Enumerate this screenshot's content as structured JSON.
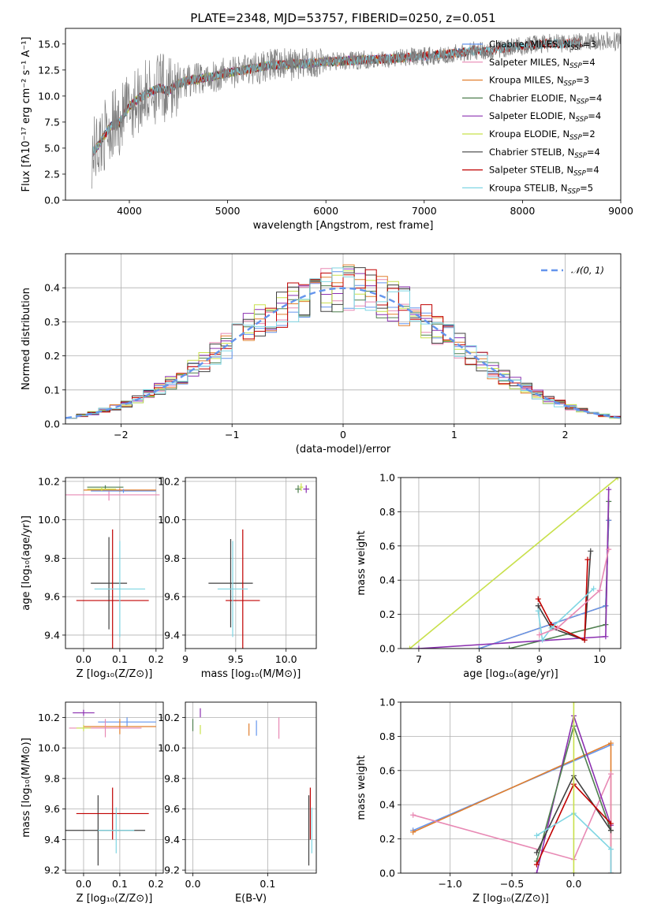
{
  "figure": {
    "title": "PLATE=2348, MJD=53757, FIBERID=0250, z=0.051"
  },
  "chart_data": [
    {
      "id": "spectrum",
      "type": "line",
      "xlabel": "wavelength [Angstrom, rest frame]",
      "ylabel": "Flux [fλ10⁻¹⁷ erg cm⁻² s⁻¹ A⁻¹]",
      "xlim": [
        3350,
        9000
      ],
      "ylim": [
        0,
        16.5
      ],
      "xticks": [
        "4000",
        "5000",
        "6000",
        "7000",
        "8000",
        "9000"
      ],
      "yticks": [
        "0.0",
        "2.5",
        "5.0",
        "7.5",
        "10.0",
        "12.5",
        "15.0"
      ],
      "grid": false,
      "legend_position": "top-right",
      "data_series": {
        "name": "",
        "color": "#808080",
        "x": [
          3620,
          3700,
          3800,
          3900,
          4000,
          4100,
          4200,
          4300,
          4400,
          4500,
          4600,
          4700,
          4800,
          4900,
          5000,
          5100,
          5200,
          5300,
          5400,
          5500,
          5600,
          5700,
          5800,
          5900,
          6000,
          6100,
          6200,
          6300,
          6400,
          6500,
          6600,
          6700,
          6800,
          6900,
          7000,
          7100,
          7200,
          7300,
          7400,
          7500,
          7600,
          7700,
          7800,
          7900,
          8000,
          8100,
          8200,
          8300,
          8400,
          8500,
          8600,
          8700,
          8800,
          8900,
          9000
        ],
        "y": [
          4.5,
          5.5,
          7.0,
          7.5,
          9.0,
          9.8,
          10.3,
          10.8,
          10.5,
          11.2,
          11.5,
          11.6,
          11.8,
          12.0,
          12.2,
          12.4,
          12.6,
          12.7,
          12.9,
          13.0,
          13.0,
          13.1,
          13.1,
          13.2,
          13.3,
          13.3,
          13.4,
          13.4,
          13.5,
          13.5,
          13.6,
          13.6,
          13.7,
          13.8,
          13.8,
          13.9,
          14.0,
          14.1,
          14.2,
          14.4,
          14.3,
          14.4,
          14.6,
          14.7,
          14.8,
          14.9,
          15.0,
          15.1,
          15.0,
          15.1,
          15.2,
          15.2,
          15.3,
          15.2,
          15.3
        ]
      },
      "models": [
        {
          "name": "Chabrier MILES, N_SSP=3",
          "color": "#6495ed",
          "end": 7420
        },
        {
          "name": "Salpeter MILES, N_SSP=4",
          "color": "#e889b4",
          "end": 7420
        },
        {
          "name": "Kroupa MILES, N_SSP=3",
          "color": "#e17f2e",
          "end": 7420
        },
        {
          "name": "Chabrier ELODIE, N_SSP=4",
          "color": "#4f7f4f",
          "end": 6800
        },
        {
          "name": "Salpeter ELODIE, N_SSP=4",
          "color": "#8b30b0",
          "end": 6800
        },
        {
          "name": "Kroupa ELODIE, N_SSP=2",
          "color": "#c8e04b",
          "end": 6800
        },
        {
          "name": "Chabrier STELIB, N_SSP=4",
          "color": "#404040",
          "end": 8600
        },
        {
          "name": "Salpeter STELIB, N_SSP=4",
          "color": "#c00000",
          "end": 8600
        },
        {
          "name": "Kroupa STELIB, N_SSP=5",
          "color": "#7fd6e3",
          "end": 8600
        }
      ]
    },
    {
      "id": "residuals",
      "type": "line",
      "xlabel": "(data-model)/error",
      "ylabel": "Normed distribution",
      "xlim": [
        -2.5,
        2.5
      ],
      "ylim": [
        0,
        0.5
      ],
      "xticks": [
        "−2",
        "−1",
        "0",
        "1",
        "2"
      ],
      "yticks": [
        "0.0",
        "0.1",
        "0.2",
        "0.3",
        "0.4"
      ],
      "grid": true,
      "legend_position": "top-right",
      "legend_label": "𝒩(0, 1)",
      "gaussian": {
        "mean": 0,
        "sigma": 1,
        "color": "#6495ed"
      }
    },
    {
      "id": "age-vs-Z",
      "type": "scatter",
      "xlabel": "Z [log₁₀(Z/Z⊙)]",
      "ylabel": "age  [log₁₀(age/yr)]",
      "xlim": [
        -0.05,
        0.22
      ],
      "ylim": [
        9.33,
        10.22
      ],
      "xticks": [
        "0.0",
        "0.1",
        "0.2"
      ],
      "yticks": [
        "9.4",
        "9.6",
        "9.8",
        "10.0",
        "10.2"
      ],
      "grid": true,
      "points": [
        {
          "color": "#e889b4",
          "x": 0.07,
          "y": 10.13,
          "xerr": 0.14,
          "yerr": 0.03
        },
        {
          "color": "#e17f2e",
          "x": 0.1,
          "y": 10.155,
          "xerr": 0.1,
          "yerr": 0.01
        },
        {
          "color": "#6495ed",
          "x": 0.11,
          "y": 10.15,
          "xerr": 0.09,
          "yerr": 0.01
        },
        {
          "color": "#4f7f4f",
          "x": 0.06,
          "y": 10.17,
          "xerr": 0.05,
          "yerr": 0.01
        },
        {
          "color": "#c8e04b",
          "x": 0.05,
          "y": 10.16,
          "xerr": 0.04,
          "yerr": 0.01
        },
        {
          "color": "#404040",
          "x": 0.07,
          "y": 9.67,
          "xerr": 0.05,
          "yerr": 0.24
        },
        {
          "color": "#c00000",
          "x": 0.08,
          "y": 9.58,
          "xerr": 0.1,
          "yerr": 0.37
        },
        {
          "color": "#7fd6e3",
          "x": 0.1,
          "y": 9.64,
          "xerr": 0.07,
          "yerr": 0.25
        }
      ]
    },
    {
      "id": "age-vs-mass",
      "type": "scatter",
      "xlabel": "mass [log₁₀(M/M⊙)]",
      "ylabel": "",
      "xlim": [
        9.0,
        10.3
      ],
      "ylim": [
        9.33,
        10.22
      ],
      "xticks": [
        "9",
        "9.5",
        "10.0"
      ],
      "yticks": [
        "9.4",
        "9.6",
        "9.8",
        "10.0",
        "10.2"
      ],
      "grid": true,
      "points": [
        {
          "color": "#4f7f4f",
          "x": 10.12,
          "y": 10.16,
          "xerr": 0.03,
          "yerr": 0.02
        },
        {
          "color": "#c8e04b",
          "x": 10.15,
          "y": 10.17,
          "xerr": 0.02,
          "yerr": 0.02
        },
        {
          "color": "#8b30b0",
          "x": 10.2,
          "y": 10.16,
          "xerr": 0.03,
          "yerr": 0.02
        },
        {
          "color": "#404040",
          "x": 9.45,
          "y": 9.67,
          "xerr": 0.22,
          "yerr": 0.23
        },
        {
          "color": "#c00000",
          "x": 9.57,
          "y": 9.58,
          "xerr": 0.17,
          "yerr": 0.37
        },
        {
          "color": "#7fd6e3",
          "x": 9.47,
          "y": 9.64,
          "xerr": 0.15,
          "yerr": 0.25
        }
      ]
    },
    {
      "id": "mass-weight-vs-age",
      "type": "line",
      "xlabel": "age  [log₁₀(age/yr)]",
      "ylabel": "mass weight",
      "xlim": [
        6.7,
        10.35
      ],
      "ylim": [
        0,
        1.0
      ],
      "xticks": [
        "7",
        "8",
        "9",
        "10"
      ],
      "yticks": [
        "0.0",
        "0.2",
        "0.4",
        "0.6",
        "0.8",
        "1.0"
      ],
      "grid": true,
      "series": [
        {
          "color": "#c8e04b",
          "x": [
            6.85,
            10.3
          ],
          "y": [
            0.0,
            1.0
          ]
        },
        {
          "color": "#e17f2e",
          "x": [
            8.0,
            10.1,
            10.15
          ],
          "y": [
            0.0,
            0.25,
            0.75
          ]
        },
        {
          "color": "#6495ed",
          "x": [
            8.0,
            10.1,
            10.15
          ],
          "y": [
            0.0,
            0.25,
            0.75
          ]
        },
        {
          "color": "#4f7f4f",
          "x": [
            8.5,
            10.1,
            10.15
          ],
          "y": [
            0.0,
            0.14,
            0.86
          ]
        },
        {
          "color": "#8b30b0",
          "x": [
            7.0,
            10.1,
            10.15
          ],
          "y": [
            0.0,
            0.07,
            0.93
          ]
        },
        {
          "color": "#404040",
          "x": [
            8.98,
            9.2,
            9.75,
            9.85
          ],
          "y": [
            0.25,
            0.12,
            0.05,
            0.57
          ]
        },
        {
          "color": "#c00000",
          "x": [
            8.98,
            9.2,
            9.75,
            9.8
          ],
          "y": [
            0.29,
            0.14,
            0.05,
            0.52
          ]
        },
        {
          "color": "#7fd6e3",
          "x": [
            8.98,
            9.05,
            9.2,
            9.9
          ],
          "y": [
            0.22,
            0.05,
            0.12,
            0.35
          ]
        },
        {
          "color": "#e889b4",
          "x": [
            9.0,
            9.3,
            10.0,
            10.15
          ],
          "y": [
            0.08,
            0.12,
            0.34,
            0.58
          ]
        }
      ]
    },
    {
      "id": "mass-vs-Z",
      "type": "scatter",
      "xlabel": "Z [log₁₀(Z/Z⊙)]",
      "ylabel": "mass [log₁₀(M/M⊙)]",
      "xlim": [
        -0.05,
        0.22
      ],
      "ylim": [
        9.18,
        10.3
      ],
      "xticks": [
        "0.0",
        "0.1",
        "0.2"
      ],
      "yticks": [
        "9.2",
        "9.4",
        "9.6",
        "9.8",
        "10.0",
        "10.2"
      ],
      "grid": true,
      "points": [
        {
          "color": "#8b30b0",
          "x": 0.0,
          "y": 10.23,
          "xerr": 0.03,
          "yerr": 0.02
        },
        {
          "color": "#6495ed",
          "x": 0.12,
          "y": 10.17,
          "xerr": 0.08,
          "yerr": 0.03
        },
        {
          "color": "#e17f2e",
          "x": 0.1,
          "y": 10.14,
          "xerr": 0.1,
          "yerr": 0.05
        },
        {
          "color": "#e889b4",
          "x": 0.06,
          "y": 10.13,
          "xerr": 0.1,
          "yerr": 0.06
        },
        {
          "color": "#c8e04b",
          "x": 0.0,
          "y": 10.13,
          "xerr": 0.02,
          "yerr": 0.02
        },
        {
          "color": "#404040",
          "x": 0.04,
          "y": 9.46,
          "xerr": 0.13,
          "yerr": 0.23
        },
        {
          "color": "#c00000",
          "x": 0.08,
          "y": 9.57,
          "xerr": 0.1,
          "yerr": 0.17
        },
        {
          "color": "#7fd6e3",
          "x": 0.09,
          "y": 9.46,
          "xerr": 0.05,
          "yerr": 0.15
        }
      ]
    },
    {
      "id": "mass-vs-EBV",
      "type": "scatter",
      "xlabel": "E(B-V)",
      "ylabel": "",
      "xlim": [
        -0.01,
        0.165
      ],
      "ylim": [
        9.18,
        10.3
      ],
      "xticks": [
        "0.0",
        "0.1"
      ],
      "yticks": [
        "9.2",
        "9.4",
        "9.6",
        "9.8",
        "10.0",
        "10.2"
      ],
      "grid": true,
      "points": [
        {
          "color": "#8b30b0",
          "x": 0.01,
          "y": 10.23,
          "xerr": 0,
          "yerr": 0.03
        },
        {
          "color": "#4f7f4f",
          "x": 0.0,
          "y": 10.15,
          "xerr": 0,
          "yerr": 0.04
        },
        {
          "color": "#c8e04b",
          "x": 0.01,
          "y": 10.12,
          "xerr": 0,
          "yerr": 0.03
        },
        {
          "color": "#e17f2e",
          "x": 0.075,
          "y": 10.12,
          "xerr": 0,
          "yerr": 0.04
        },
        {
          "color": "#6495ed",
          "x": 0.085,
          "y": 10.13,
          "xerr": 0,
          "yerr": 0.05
        },
        {
          "color": "#e889b4",
          "x": 0.115,
          "y": 10.13,
          "xerr": 0,
          "yerr": 0.07
        },
        {
          "color": "#404040",
          "x": 0.155,
          "y": 9.46,
          "xerr": 0,
          "yerr": 0.23
        },
        {
          "color": "#c00000",
          "x": 0.157,
          "y": 9.57,
          "xerr": 0,
          "yerr": 0.17
        },
        {
          "color": "#7fd6e3",
          "x": 0.159,
          "y": 9.46,
          "xerr": 0,
          "yerr": 0.15
        }
      ]
    },
    {
      "id": "mass-weight-vs-Z",
      "type": "line",
      "xlabel": "Z [log₁₀(Z/Z⊙)]",
      "ylabel": "mass weight",
      "xlim": [
        -1.4,
        0.38
      ],
      "ylim": [
        0,
        1.0
      ],
      "xticks": [
        "−1.0",
        "−0.5",
        "0.0"
      ],
      "yticks": [
        "0.0",
        "0.2",
        "0.4",
        "0.6",
        "0.8",
        "1.0"
      ],
      "grid": true,
      "series": [
        {
          "color": "#6495ed",
          "x": [
            -1.3,
            0.3
          ],
          "y": [
            0.25,
            0.75
          ]
        },
        {
          "color": "#e17f2e",
          "x": [
            -1.3,
            0.3,
            0.3
          ],
          "y": [
            0.24,
            0.76,
            0.0
          ]
        },
        {
          "color": "#e889b4",
          "x": [
            -1.3,
            0.0,
            0.3,
            0.3
          ],
          "y": [
            0.34,
            0.08,
            0.58,
            0.0
          ]
        },
        {
          "color": "#8b30b0",
          "x": [
            -0.3,
            0.0,
            0.3
          ],
          "y": [
            0.0,
            0.92,
            0.28
          ]
        },
        {
          "color": "#4f7f4f",
          "x": [
            -0.3,
            0.0,
            0.3
          ],
          "y": [
            0.07,
            0.86,
            0.25
          ]
        },
        {
          "color": "#404040",
          "x": [
            -0.3,
            0.0,
            0.3
          ],
          "y": [
            0.12,
            0.57,
            0.25
          ]
        },
        {
          "color": "#c00000",
          "x": [
            -0.3,
            0.0,
            0.3
          ],
          "y": [
            0.05,
            0.52,
            0.29
          ]
        },
        {
          "color": "#7fd6e3",
          "x": [
            -0.3,
            0.0,
            0.3,
            0.3
          ],
          "y": [
            0.22,
            0.35,
            0.14,
            0.0
          ]
        },
        {
          "color": "#c8e04b",
          "x": [
            0.0,
            0.0
          ],
          "y": [
            0.0,
            1.0
          ]
        }
      ]
    }
  ]
}
